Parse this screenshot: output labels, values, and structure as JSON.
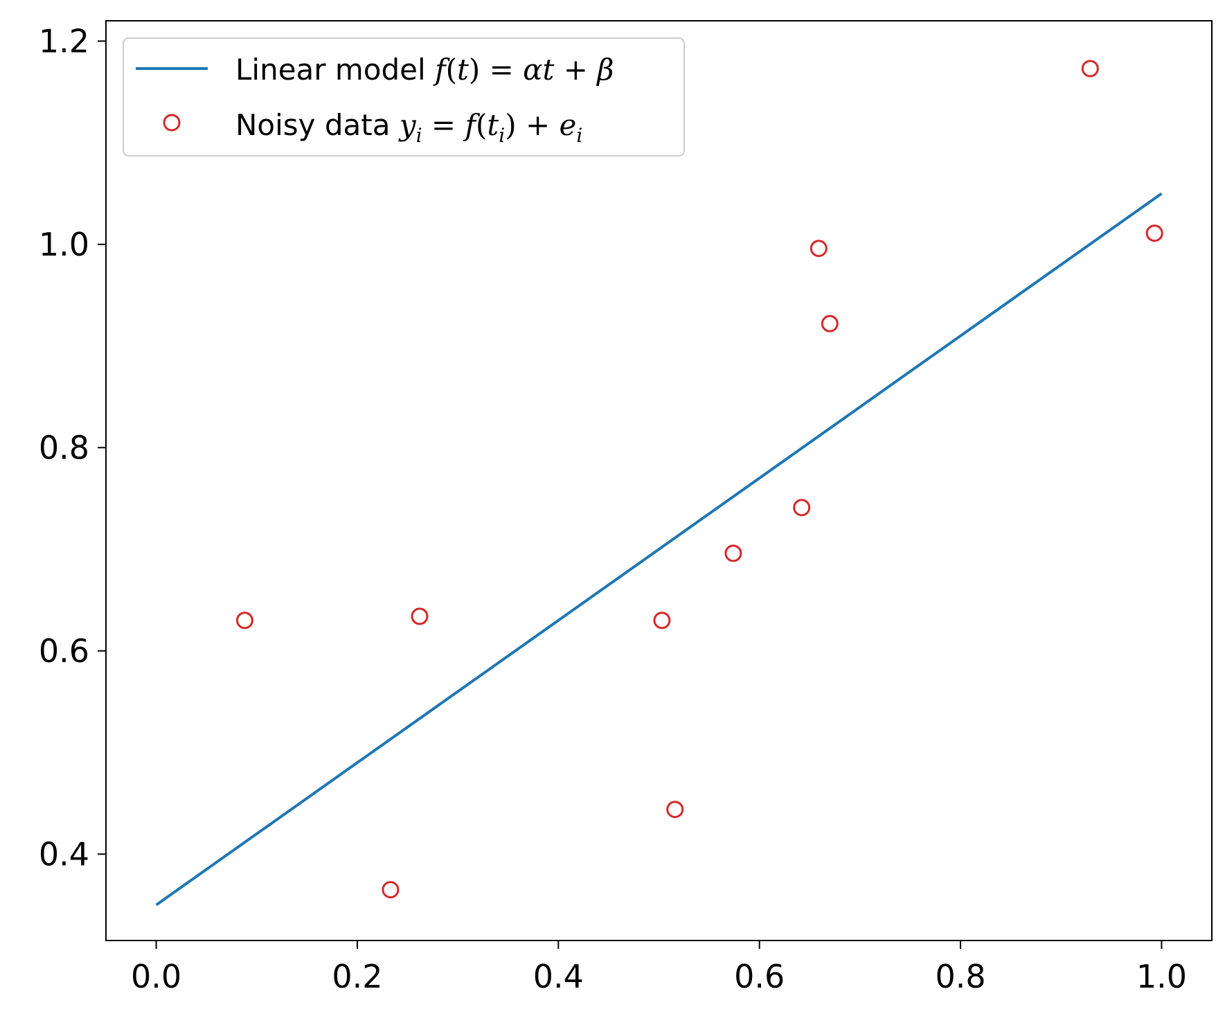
{
  "chart_data": {
    "type": "scatter",
    "title": "",
    "xlabel": "",
    "ylabel": "",
    "xlim": [
      -0.05,
      1.05
    ],
    "ylim": [
      0.315,
      1.22
    ],
    "x_ticks": [
      0.0,
      0.2,
      0.4,
      0.6,
      0.8,
      1.0
    ],
    "x_tick_labels": [
      "0.0",
      "0.2",
      "0.4",
      "0.6",
      "0.8",
      "1.0"
    ],
    "y_ticks": [
      0.4,
      0.6,
      0.8,
      1.0,
      1.2
    ],
    "y_tick_labels": [
      "0.4",
      "0.6",
      "0.8",
      "1.0",
      "1.2"
    ],
    "grid": false,
    "legend_position": "top-left",
    "series": [
      {
        "name": "Linear model f(t) = αt + β",
        "kind": "line",
        "color": "#1f77b4",
        "x": [
          0.0,
          1.0
        ],
        "y": [
          0.35,
          1.05
        ]
      },
      {
        "name": "Noisy data yᵢ = f(tᵢ) + eᵢ",
        "kind": "scatter",
        "marker": "open-circle",
        "color": "#d62728",
        "x": [
          0.088,
          0.233,
          0.262,
          0.503,
          0.516,
          0.574,
          0.642,
          0.659,
          0.67,
          0.929,
          0.993
        ],
        "y": [
          0.63,
          0.365,
          0.634,
          0.63,
          0.444,
          0.696,
          0.741,
          0.996,
          0.922,
          1.173,
          1.011
        ]
      }
    ]
  }
}
